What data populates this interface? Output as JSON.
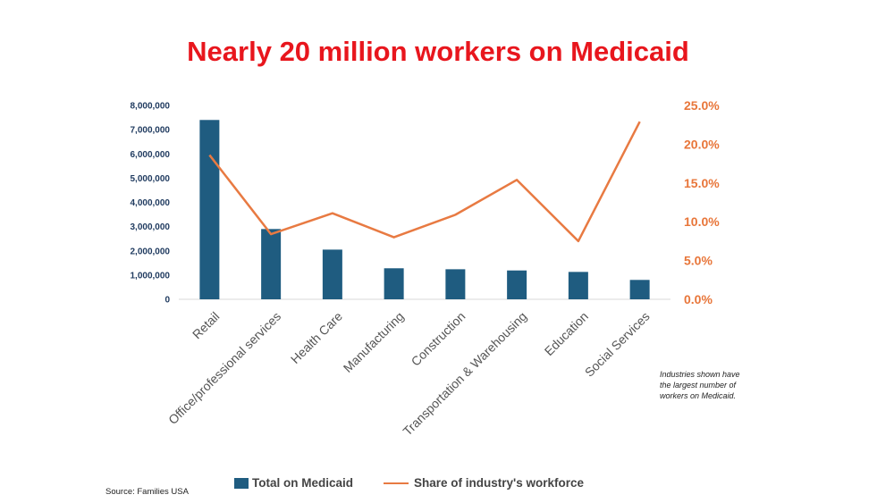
{
  "chart_data": {
    "type": "bar+line",
    "title": "Nearly 20 million workers on Medicaid",
    "categories": [
      "Retail",
      "Office/professional services",
      "Health Care",
      "Manufacturing",
      "Construction",
      "Transportation & Warehousing",
      "Education",
      "Social Services"
    ],
    "series": [
      {
        "name": "Total on Medicaid",
        "type": "bar",
        "axis": "left",
        "values": [
          7400000,
          2900000,
          2050000,
          1280000,
          1240000,
          1190000,
          1130000,
          800000
        ]
      },
      {
        "name": "Share of industry's workforce",
        "type": "line",
        "axis": "right",
        "values": [
          18.6,
          8.4,
          11.1,
          8.0,
          10.9,
          15.4,
          7.5,
          22.9
        ]
      }
    ],
    "y_left": {
      "min": 0,
      "max": 8000000,
      "step": 1000000,
      "ticks": [
        "0",
        "1,000,000",
        "2,000,000",
        "3,000,000",
        "4,000,000",
        "5,000,000",
        "6,000,000",
        "7,000,000",
        "8,000,000"
      ]
    },
    "y_right": {
      "min": 0,
      "max": 25,
      "step": 5,
      "ticks": [
        "0.0%",
        "5.0%",
        "10.0%",
        "15.0%",
        "20.0%",
        "25.0%"
      ]
    },
    "grid": false
  },
  "annotation": "Industries shown have the largest number of workers on Medicaid.",
  "source": "Source: Families USA",
  "legend": {
    "bar_label": "Total on Medicaid",
    "line_label": "Share of industry's workforce"
  },
  "colors": {
    "bar": "#1f5c80",
    "line": "#e87a42",
    "title": "#e8161d",
    "left_axis_text": "#1f3a5f",
    "right_axis_text": "#e8763a",
    "category_text": "#555555"
  }
}
